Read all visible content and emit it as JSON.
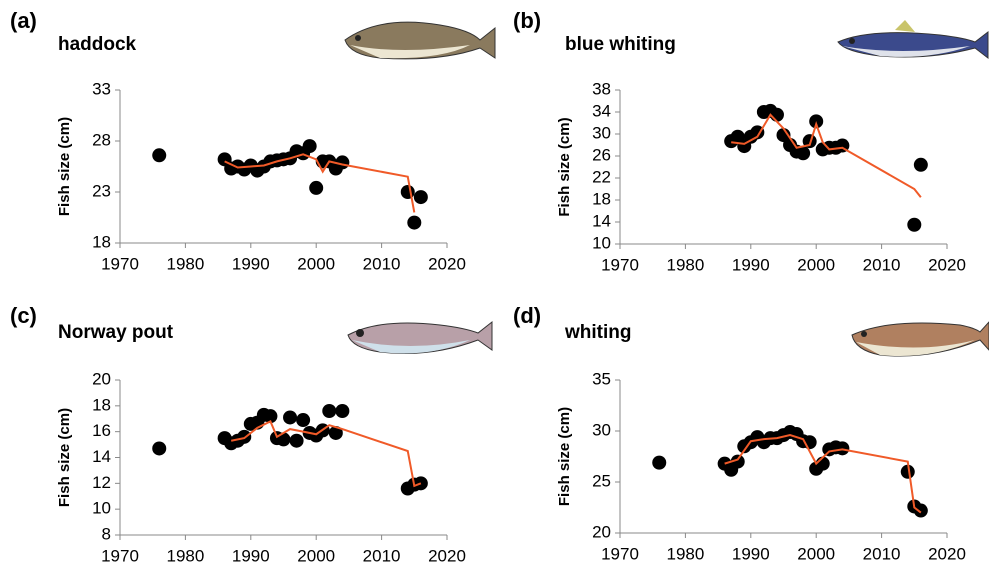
{
  "chart_data": [
    {
      "type": "scatter",
      "label": "(a)",
      "title": "haddock",
      "ylabel": "Fish size (cm)",
      "xlim": [
        1970,
        2020
      ],
      "xticks": [
        1970,
        1980,
        1990,
        2000,
        2010,
        2020
      ],
      "ylim": [
        18,
        33
      ],
      "yticks": [
        18,
        23,
        28,
        33
      ],
      "series": [
        {
          "style": "marker",
          "color": "#000000",
          "x": [
            1976,
            1986,
            1987,
            1988,
            1989,
            1990,
            1991,
            1992,
            1993,
            1994,
            1995,
            1996,
            1997,
            1998,
            1999,
            2000,
            2001,
            2002,
            2003,
            2004,
            2014,
            2015,
            2016
          ],
          "values": [
            26.6,
            26.2,
            25.3,
            25.5,
            25.2,
            25.6,
            25.1,
            25.5,
            26.0,
            26.1,
            26.2,
            26.3,
            27.0,
            26.8,
            27.5,
            23.4,
            26.0,
            26.0,
            25.3,
            25.9,
            23.0,
            20.0,
            22.5
          ]
        },
        {
          "style": "line",
          "color": "#f05a28",
          "x": [
            1986,
            1988,
            1990,
            1992,
            1994,
            1996,
            1998,
            2000,
            2001,
            2002,
            2004,
            2014,
            2015
          ],
          "values": [
            26.0,
            25.4,
            25.5,
            25.6,
            26.0,
            26.3,
            26.7,
            26.2,
            25.0,
            26.0,
            25.7,
            24.5,
            21.0
          ]
        }
      ]
    },
    {
      "type": "scatter",
      "label": "(b)",
      "title": "blue whiting",
      "ylabel": "Fish size (cm)",
      "xlim": [
        1970,
        2020
      ],
      "xticks": [
        1970,
        1980,
        1990,
        2000,
        2010,
        2020
      ],
      "ylim": [
        10,
        38
      ],
      "yticks": [
        10,
        14,
        18,
        22,
        26,
        30,
        34,
        38
      ],
      "series": [
        {
          "style": "marker",
          "color": "#000000",
          "x": [
            1987,
            1988,
            1989,
            1990,
            1991,
            1992,
            1993,
            1994,
            1995,
            1996,
            1997,
            1998,
            1999,
            2000,
            2001,
            2002,
            2003,
            2004,
            2015,
            2016
          ],
          "values": [
            28.7,
            29.5,
            27.8,
            29.5,
            30.3,
            34.0,
            34.2,
            33.5,
            29.8,
            28.0,
            26.8,
            26.5,
            28.7,
            32.3,
            27.2,
            27.5,
            27.5,
            27.9,
            13.5,
            24.4
          ]
        },
        {
          "style": "line",
          "color": "#f05a28",
          "x": [
            1987,
            1989,
            1991,
            1993,
            1995,
            1997,
            1999,
            2000,
            2001,
            2002,
            2004,
            2015,
            2016
          ],
          "values": [
            28.5,
            28.2,
            29.5,
            33.5,
            31.0,
            27.5,
            28.0,
            31.8,
            28.5,
            27.2,
            27.5,
            20.0,
            18.5
          ]
        }
      ]
    },
    {
      "type": "scatter",
      "label": "(c)",
      "title": "Norway pout",
      "ylabel": "Fish size (cm)",
      "xlim": [
        1970,
        2020
      ],
      "xticks": [
        1970,
        1980,
        1990,
        2000,
        2010,
        2020
      ],
      "ylim": [
        8,
        20
      ],
      "yticks": [
        8,
        10,
        12,
        14,
        16,
        18,
        20
      ],
      "series": [
        {
          "style": "marker",
          "color": "#000000",
          "x": [
            1976,
            1986,
            1987,
            1988,
            1989,
            1990,
            1991,
            1992,
            1993,
            1994,
            1995,
            1996,
            1997,
            1998,
            1999,
            2000,
            2001,
            2002,
            2003,
            2004,
            2014,
            2015,
            2016
          ],
          "values": [
            14.7,
            15.5,
            15.1,
            15.3,
            15.6,
            16.6,
            16.7,
            17.3,
            17.2,
            15.5,
            15.4,
            17.1,
            15.3,
            16.9,
            15.9,
            15.7,
            16.1,
            17.6,
            15.9,
            17.6,
            11.6,
            11.9,
            12.0
          ]
        },
        {
          "style": "line",
          "color": "#f05a28",
          "x": [
            1987,
            1989,
            1991,
            1993,
            1994,
            1996,
            1998,
            2000,
            2002,
            2004,
            2014,
            2015,
            2016
          ],
          "values": [
            15.3,
            15.5,
            16.3,
            16.8,
            15.6,
            16.2,
            16.0,
            15.8,
            16.5,
            16.2,
            14.5,
            11.8,
            12.0
          ]
        }
      ]
    },
    {
      "type": "scatter",
      "label": "(d)",
      "title": "whiting",
      "ylabel": "Fish size (cm)",
      "xlim": [
        1970,
        2020
      ],
      "xticks": [
        1970,
        1980,
        1990,
        2000,
        2010,
        2020
      ],
      "ylim": [
        20,
        35
      ],
      "yticks": [
        20,
        25,
        30,
        35
      ],
      "series": [
        {
          "style": "marker",
          "color": "#000000",
          "x": [
            1976,
            1986,
            1987,
            1988,
            1989,
            1990,
            1991,
            1992,
            1993,
            1994,
            1995,
            1996,
            1997,
            1998,
            1999,
            2000,
            2001,
            2002,
            2003,
            2004,
            2014,
            2015,
            2016
          ],
          "values": [
            26.9,
            26.8,
            26.2,
            27.0,
            28.5,
            28.9,
            29.4,
            28.9,
            29.3,
            29.3,
            29.6,
            29.9,
            29.7,
            29.0,
            28.9,
            26.3,
            26.8,
            28.2,
            28.4,
            28.3,
            26.0,
            22.6,
            22.2
          ]
        },
        {
          "style": "line",
          "color": "#f05a28",
          "x": [
            1986,
            1988,
            1990,
            1992,
            1994,
            1996,
            1998,
            2000,
            2002,
            2004,
            2014,
            2015,
            2016
          ],
          "values": [
            26.8,
            27.2,
            29.0,
            29.2,
            29.3,
            29.6,
            29.2,
            26.8,
            28.0,
            28.2,
            27.0,
            22.5,
            22.0
          ]
        }
      ]
    }
  ]
}
